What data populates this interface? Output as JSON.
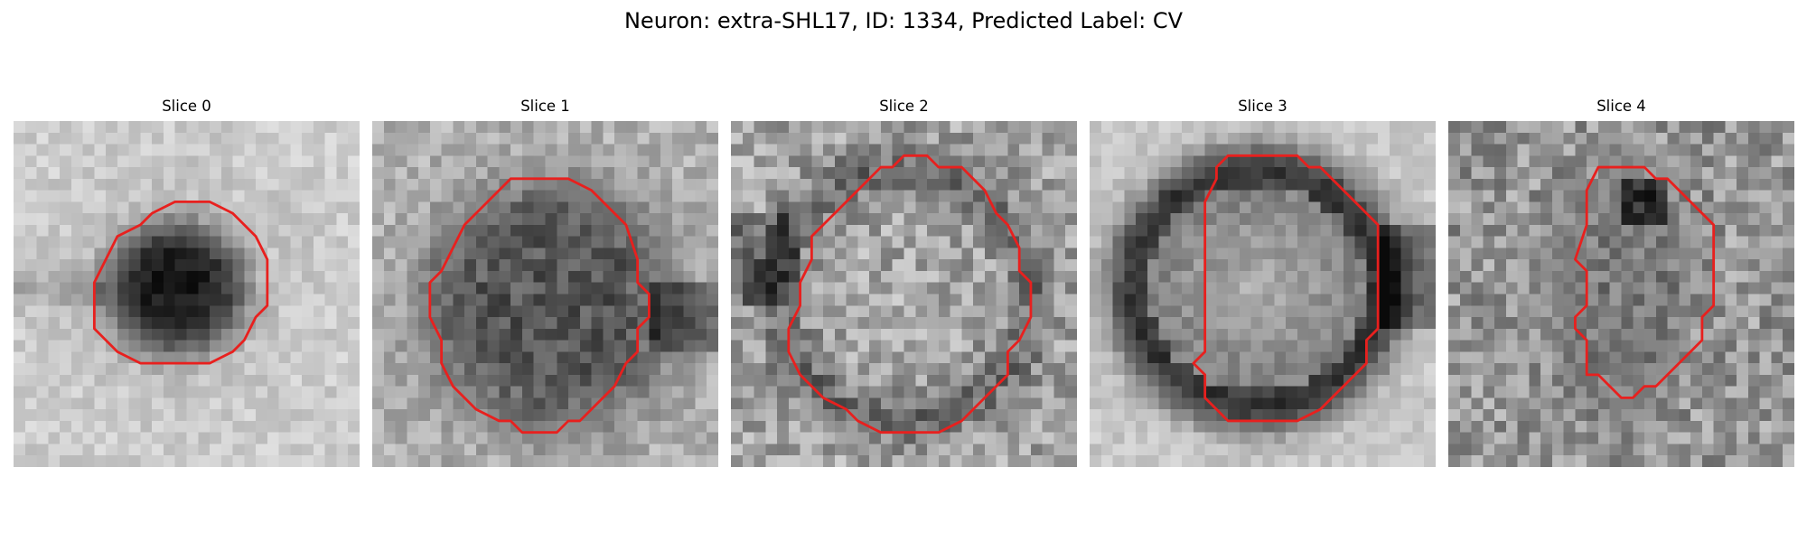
{
  "figure": {
    "title": "Neuron: extra-SHL17, ID: 1334, Predicted Label: CV"
  },
  "panels": [
    {
      "title": "Slice 0",
      "image": {
        "kind": "grayscale-micrograph",
        "cell": "compact dark blob",
        "colormap": "gray"
      },
      "contour": {
        "color": "#e8201e"
      }
    },
    {
      "title": "Slice 1",
      "image": {
        "kind": "grayscale-micrograph",
        "cell": "large textured round body",
        "colormap": "gray"
      },
      "contour": {
        "color": "#e8201e"
      }
    },
    {
      "title": "Slice 2",
      "image": {
        "kind": "grayscale-micrograph",
        "cell": "faint round body",
        "colormap": "gray"
      },
      "contour": {
        "color": "#e8201e"
      }
    },
    {
      "title": "Slice 3",
      "image": {
        "kind": "grayscale-micrograph",
        "cell": "dark ring with lighter center",
        "colormap": "gray"
      },
      "contour": {
        "color": "#e8201e"
      }
    },
    {
      "title": "Slice 4",
      "image": {
        "kind": "grayscale-micrograph",
        "cell": "narrow elongated body",
        "colormap": "gray"
      },
      "contour": {
        "color": "#e8201e"
      }
    }
  ]
}
